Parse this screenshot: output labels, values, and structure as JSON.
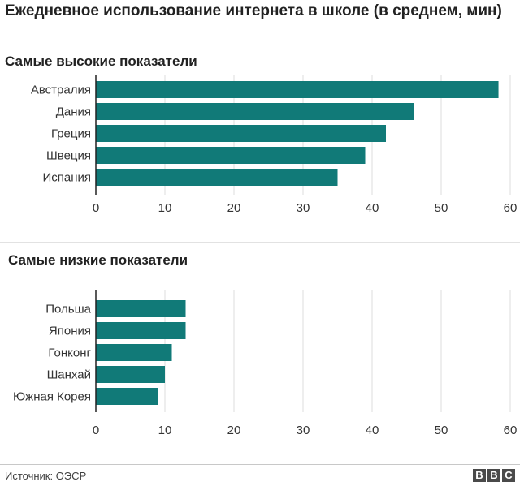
{
  "title": "Ежедневное использование интернета в школе (в среднем, мин)",
  "source": "Источник: ОЭСР",
  "logo_letters": [
    "B",
    "B",
    "C"
  ],
  "colors": {
    "bar": "#117a78",
    "grid": "#dddddd",
    "axis": "#222222"
  },
  "chart_data": [
    {
      "type": "bar",
      "orientation": "horizontal",
      "title": "Самые высокие показатели",
      "categories": [
        "Австралия",
        "Дания",
        "Греция",
        "Швеция",
        "Испания"
      ],
      "values": [
        58.3,
        46,
        42,
        39,
        35
      ],
      "xlim": [
        0,
        60
      ],
      "xticks": [
        0,
        10,
        20,
        30,
        40,
        50,
        60
      ],
      "grid": true,
      "xlabel": "",
      "ylabel": ""
    },
    {
      "type": "bar",
      "orientation": "horizontal",
      "title": "Самые низкие показатели",
      "categories": [
        "Польша",
        "Япония",
        "Гонконг",
        "Шанхай",
        "Южная Корея"
      ],
      "values": [
        13,
        13,
        11,
        10,
        9
      ],
      "xlim": [
        0,
        60
      ],
      "xticks": [
        0,
        10,
        20,
        30,
        40,
        50,
        60
      ],
      "grid": true,
      "xlabel": "",
      "ylabel": ""
    }
  ]
}
